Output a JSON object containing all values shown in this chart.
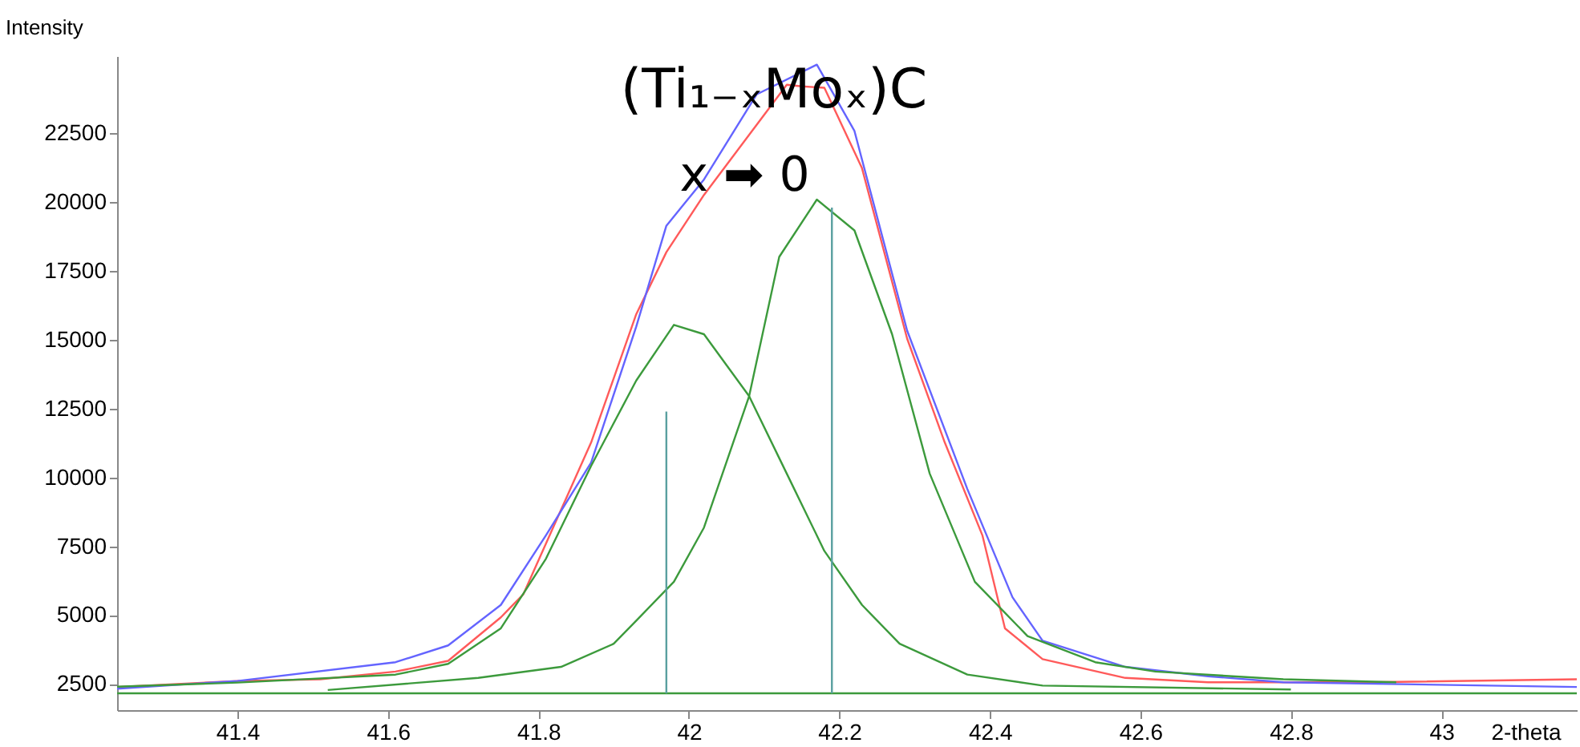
{
  "chart_data": {
    "type": "line",
    "xlabel": "2-theta",
    "ylabel": "Intensity",
    "annotations": [
      "(Ti₁₋ₓMoₓ)C",
      "x ➡ 0"
    ],
    "xlim": [
      41.24,
      43.18
    ],
    "xticks": [
      41.4,
      41.6,
      41.8,
      42,
      42.2,
      42.4,
      42.6,
      42.8,
      43
    ],
    "ylim": [
      1550,
      25300
    ],
    "yticks": [
      2500,
      5000,
      7500,
      10000,
      12500,
      15000,
      17500,
      20000,
      22500
    ],
    "marker": "none",
    "line_style": "solid",
    "series": [
      {
        "color": "#ff5a5a",
        "x": [
          41.24,
          41.4,
          41.51,
          41.61,
          41.68,
          41.75,
          41.78,
          41.87,
          41.93,
          41.97,
          42.02,
          42.13,
          42.15,
          42.18,
          42.23,
          42.29,
          42.34,
          42.39,
          42.42,
          42.47,
          42.58,
          42.69,
          42.9,
          43.18
        ],
        "values": [
          2390,
          2610,
          2670,
          2950,
          3340,
          4920,
          5760,
          11270,
          15930,
          18180,
          20260,
          24260,
          24200,
          24150,
          21230,
          15040,
          11270,
          7900,
          4520,
          3400,
          2720,
          2560,
          2560,
          2670
        ]
      },
      {
        "color": "#6464ff",
        "x": [
          41.24,
          41.4,
          41.61,
          41.68,
          41.75,
          41.81,
          41.87,
          41.93,
          41.97,
          42.02,
          42.09,
          42.17,
          42.22,
          42.29,
          42.37,
          42.43,
          42.47,
          42.58,
          42.69,
          42.79,
          43.18
        ],
        "values": [
          2330,
          2610,
          3290,
          3900,
          5370,
          7900,
          10540,
          15480,
          19140,
          20820,
          23910,
          24990,
          22580,
          15330,
          9580,
          5650,
          4070,
          3120,
          2780,
          2560,
          2390
        ]
      },
      {
        "color": "#3c9a3c",
        "x": [
          41.24,
          41.4,
          41.61,
          41.68,
          41.75,
          41.81,
          41.87,
          41.93,
          41.98,
          42.02,
          42.08,
          42.13,
          42.18,
          42.23,
          42.28,
          42.37,
          42.47,
          42.8
        ],
        "values": [
          2400,
          2550,
          2840,
          3230,
          4520,
          7050,
          10420,
          13520,
          15540,
          15200,
          12950,
          10140,
          7330,
          5370,
          3960,
          2840,
          2440,
          2300
        ]
      },
      {
        "color": "#3c9a3c",
        "x": [
          41.52,
          41.72,
          41.83,
          41.9,
          41.93,
          41.98,
          42.02,
          42.08,
          42.12,
          42.17,
          42.22,
          42.27,
          42.32,
          42.38,
          42.45,
          42.54,
          42.62,
          42.79,
          42.94
        ],
        "values": [
          2280,
          2720,
          3120,
          3960,
          4800,
          6210,
          8180,
          12950,
          18010,
          20090,
          18970,
          15200,
          10140,
          6210,
          4240,
          3290,
          2950,
          2670,
          2560
        ]
      },
      {
        "color": "#3c9a3c",
        "x": [
          41.24,
          43.18
        ],
        "values": [
          2160,
          2160
        ]
      },
      {
        "color": "#5aa0a0",
        "x": [
          41.97,
          41.97
        ],
        "values": [
          2160,
          12390
        ]
      },
      {
        "color": "#5aa0a0",
        "x": [
          42.19,
          42.19
        ],
        "values": [
          2160,
          19800
        ]
      }
    ]
  }
}
